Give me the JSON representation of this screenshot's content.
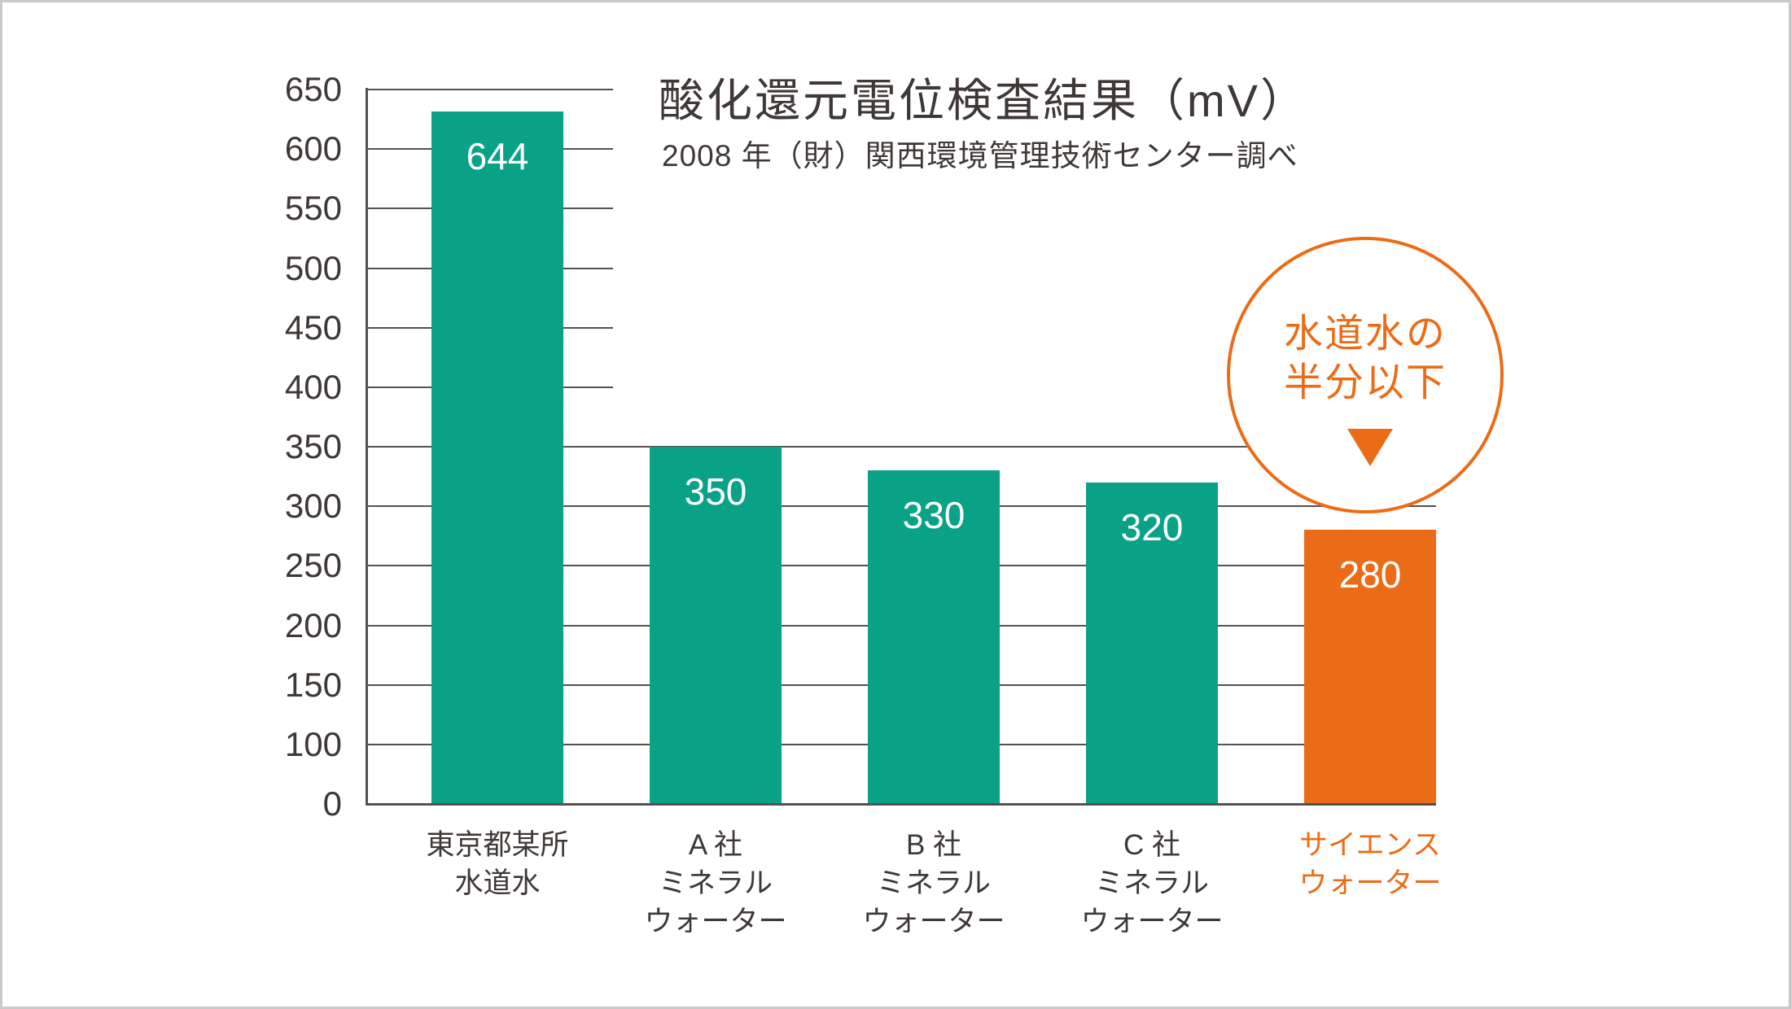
{
  "chart_data": {
    "type": "bar",
    "title": "酸化還元電位検査結果（mV）",
    "subtitle": "2008 年（財）関西環境管理技術センター調べ",
    "ylabel": "",
    "xlabel": "",
    "ylim": [
      0,
      650
    ],
    "y_ticks": [
      650,
      600,
      550,
      500,
      450,
      400,
      350,
      300,
      250,
      200,
      150,
      100,
      0
    ],
    "grid": true,
    "short_gridline_min_value": 400,
    "categories": [
      [
        "東京都某所",
        "水道水"
      ],
      [
        "A 社",
        "ミネラル",
        "ウォーター"
      ],
      [
        "B 社",
        "ミネラル",
        "ウォーター"
      ],
      [
        "C 社",
        "ミネラル",
        "ウォーター"
      ],
      [
        "サイエンス",
        "ウォーター"
      ]
    ],
    "values": [
      644,
      350,
      330,
      320,
      280
    ],
    "value_labels": [
      "644",
      "350",
      "330",
      "320",
      "280"
    ],
    "bar_colors": [
      "teal",
      "teal",
      "teal",
      "teal",
      "orange"
    ],
    "annotation": {
      "lines": [
        "水道水の",
        "半分以下"
      ],
      "marker_icon": "triangle-down-icon"
    },
    "colors": {
      "teal": "#09a287",
      "orange": "#eb6c17",
      "grid": "#57504e",
      "text": "#3e3836",
      "value_label": "#ffffff",
      "frame_border": "#c9c9c9"
    }
  }
}
